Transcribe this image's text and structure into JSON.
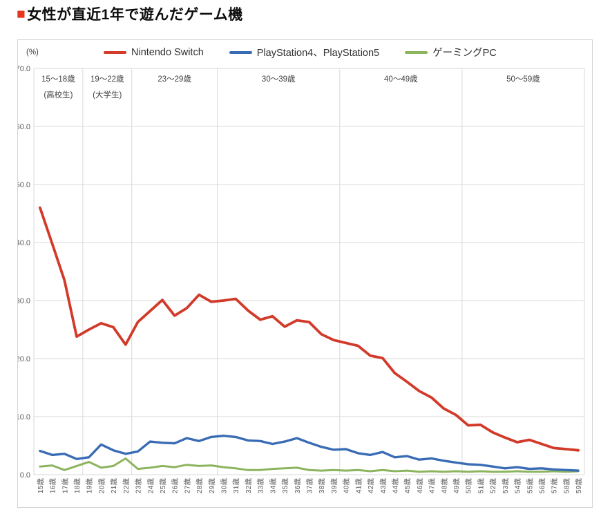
{
  "title": {
    "bullet": "■",
    "bullet_color": "#e8341c",
    "text": "女性が直近1年で遊んだゲーム機"
  },
  "unit_label": "(%)",
  "grid_color": "#d9d9d9",
  "tick_label_color": "#595959",
  "band_label_color": "#404040",
  "chart_data": {
    "type": "line",
    "title": "女性が直近1年で遊んだゲーム機",
    "ylabel": "(%)",
    "ylim": [
      0,
      70
    ],
    "y_tick_step": 10,
    "y_tick_labels_top_to_bottom": [
      "70.0",
      "60.0",
      "50.0",
      "40.0",
      "30.0",
      "20.0",
      "10.0",
      "0.0"
    ],
    "grid": true,
    "legend_position": "top",
    "x_tick_labels": [
      "15歳",
      "16歳",
      "17歳",
      "18歳",
      "19歳",
      "20歳",
      "21歳",
      "22歳",
      "23歳",
      "24歳",
      "25歳",
      "26歳",
      "27歳",
      "28歳",
      "29歳",
      "30歳",
      "31歳",
      "32歳",
      "33歳",
      "34歳",
      "35歳",
      "36歳",
      "37歳",
      "38歳",
      "39歳",
      "40歳",
      "41歳",
      "42歳",
      "43歳",
      "44歳",
      "45歳",
      "46歳",
      "47歳",
      "48歳",
      "49歳",
      "50歳",
      "51歳",
      "52歳",
      "53歳",
      "54歳",
      "55歳",
      "56歳",
      "57歳",
      "58歳",
      "59歳"
    ],
    "age_bands": [
      {
        "label": "15〜18歳",
        "sub": "(高校生)",
        "span": 4
      },
      {
        "label": "19〜22歳",
        "sub": "(大学生)",
        "span": 4
      },
      {
        "label": "23〜29歳",
        "sub": "",
        "span": 7
      },
      {
        "label": "30〜39歳",
        "sub": "",
        "span": 10
      },
      {
        "label": "40〜49歳",
        "sub": "",
        "span": 10
      },
      {
        "label": "50〜59歳",
        "sub": "",
        "span": 10
      }
    ],
    "series": [
      {
        "name": "Nintendo Switch",
        "color": "#d23a2a",
        "values": [
          46.0,
          39.8,
          33.5,
          23.8,
          25.0,
          26.1,
          25.4,
          22.4,
          26.3,
          28.2,
          30.1,
          27.4,
          28.7,
          31.0,
          29.8,
          30.0,
          30.3,
          28.3,
          26.7,
          27.3,
          25.5,
          26.6,
          26.3,
          24.2,
          23.2,
          22.7,
          22.2,
          20.5,
          20.1,
          17.5,
          16.0,
          14.4,
          13.3,
          11.4,
          10.3,
          8.5,
          8.6,
          7.3,
          6.4,
          5.6,
          6.0,
          5.3,
          4.6,
          4.4,
          4.2
        ]
      },
      {
        "name": "PlayStation4、PlayStation5",
        "color": "#3a6cb5",
        "values": [
          4.1,
          3.4,
          3.6,
          2.7,
          3.0,
          5.2,
          4.2,
          3.6,
          4.0,
          5.7,
          5.5,
          5.4,
          6.3,
          5.8,
          6.5,
          6.7,
          6.5,
          5.9,
          5.8,
          5.3,
          5.7,
          6.3,
          5.5,
          4.8,
          4.3,
          4.4,
          3.7,
          3.4,
          3.9,
          3.0,
          3.2,
          2.6,
          2.8,
          2.4,
          2.1,
          1.8,
          1.7,
          1.4,
          1.1,
          1.3,
          1.0,
          1.1,
          0.9,
          0.8,
          0.7
        ]
      },
      {
        "name": "ゲーミングPC",
        "color": "#8cb45e",
        "values": [
          1.4,
          1.6,
          0.8,
          1.5,
          2.2,
          1.2,
          1.5,
          2.8,
          1.0,
          1.2,
          1.5,
          1.3,
          1.7,
          1.5,
          1.6,
          1.3,
          1.1,
          0.8,
          0.8,
          1.0,
          1.1,
          1.2,
          0.8,
          0.7,
          0.8,
          0.7,
          0.8,
          0.6,
          0.8,
          0.6,
          0.7,
          0.5,
          0.6,
          0.5,
          0.6,
          0.5,
          0.6,
          0.5,
          0.5,
          0.6,
          0.5,
          0.5,
          0.6,
          0.5,
          0.6
        ]
      }
    ]
  }
}
